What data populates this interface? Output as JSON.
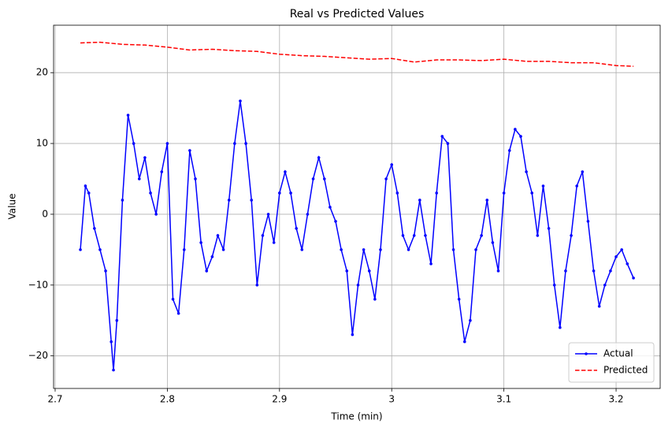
{
  "chart_data": {
    "type": "line",
    "title": "Real vs Predicted Values",
    "xlabel": "Time (min)",
    "ylabel": "Value",
    "xlim": [
      2.6986,
      3.2393
    ],
    "ylim": [
      -24.6,
      26.7
    ],
    "xticks": [
      2.7,
      2.8,
      2.9,
      3.0,
      3.1,
      3.2
    ],
    "yticks": [
      {
        "value": -20,
        "label": "−20"
      },
      {
        "value": -10,
        "label": "−10"
      },
      0,
      10,
      20
    ],
    "grid": true,
    "legend": "lower right",
    "series": [
      {
        "name": "Actual",
        "color": "#0000ff",
        "style": "solid",
        "marker": true,
        "x": [
          2.7225,
          2.727,
          2.73,
          2.735,
          2.74,
          2.745,
          2.75,
          2.752,
          2.755,
          2.76,
          2.765,
          2.77,
          2.775,
          2.78,
          2.785,
          2.79,
          2.795,
          2.8,
          2.805,
          2.81,
          2.815,
          2.82,
          2.825,
          2.83,
          2.835,
          2.84,
          2.845,
          2.85,
          2.855,
          2.86,
          2.865,
          2.87,
          2.875,
          2.88,
          2.885,
          2.89,
          2.895,
          2.9,
          2.905,
          2.91,
          2.915,
          2.92,
          2.925,
          2.93,
          2.935,
          2.94,
          2.945,
          2.95,
          2.955,
          2.96,
          2.965,
          2.97,
          2.975,
          2.98,
          2.985,
          2.99,
          2.995,
          3.0,
          3.005,
          3.01,
          3.015,
          3.02,
          3.025,
          3.03,
          3.035,
          3.04,
          3.045,
          3.05,
          3.055,
          3.06,
          3.065,
          3.07,
          3.075,
          3.08,
          3.085,
          3.09,
          3.095,
          3.1,
          3.105,
          3.11,
          3.115,
          3.12,
          3.125,
          3.13,
          3.135,
          3.14,
          3.145,
          3.15,
          3.155,
          3.16,
          3.165,
          3.17,
          3.175,
          3.18,
          3.185,
          3.19,
          3.195,
          3.2,
          3.205,
          3.21,
          3.2155
        ],
        "values": [
          -5,
          4,
          3,
          -2,
          -5,
          -8,
          -18,
          -22,
          -15,
          2,
          14,
          10,
          5,
          8,
          3,
          0,
          6,
          10,
          -12,
          -14,
          -5,
          9,
          5,
          -4,
          -8,
          -6,
          -3,
          -5,
          2,
          10,
          16,
          10,
          2,
          -10,
          -3,
          0,
          -4,
          3,
          6,
          3,
          -2,
          -5,
          0,
          5,
          8,
          5,
          1,
          -1,
          -5,
          -8,
          -17,
          -10,
          -5,
          -8,
          -12,
          -5,
          5,
          7,
          3,
          -3,
          -5,
          -3,
          2,
          -3,
          -7,
          3,
          11,
          10,
          -5,
          -12,
          -18,
          -15,
          -5,
          -3,
          2,
          -4,
          -8,
          3,
          9,
          12,
          11,
          6,
          3,
          -3,
          4,
          -2,
          -10,
          -16,
          -8,
          -3,
          4,
          6,
          -1,
          -8,
          -13,
          -10,
          -8,
          -6,
          -5,
          -7,
          -9
        ]
      },
      {
        "name": "Predicted",
        "color": "#ff0000",
        "style": "dashed",
        "marker": false,
        "x": [
          2.7225,
          2.74,
          2.76,
          2.78,
          2.8,
          2.82,
          2.84,
          2.86,
          2.88,
          2.9,
          2.92,
          2.94,
          2.96,
          2.98,
          3.0,
          3.02,
          3.04,
          3.06,
          3.08,
          3.1,
          3.12,
          3.14,
          3.16,
          3.18,
          3.2,
          3.2155
        ],
        "values": [
          24.2,
          24.3,
          24,
          23.9,
          23.6,
          23.2,
          23.3,
          23.1,
          23,
          22.6,
          22.4,
          22.3,
          22.1,
          21.9,
          22,
          21.5,
          21.8,
          21.8,
          21.7,
          21.9,
          21.6,
          21.6,
          21.4,
          21.4,
          21.0,
          20.9
        ]
      }
    ]
  }
}
